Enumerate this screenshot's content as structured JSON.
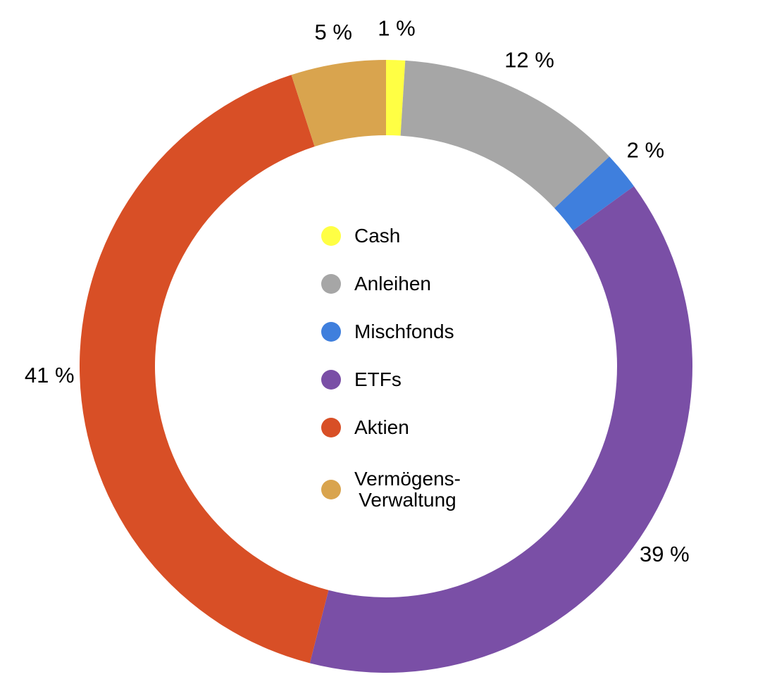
{
  "chart_data": {
    "type": "donut",
    "categories": [
      "Cash",
      "Anleihen",
      "Mischfonds",
      "ETFs",
      "Aktien",
      "Vermögens-\nVerwaltung"
    ],
    "values": [
      1,
      12,
      2,
      39,
      41,
      5
    ],
    "value_labels": [
      "1 %",
      "12 %",
      "2 %",
      "39 %",
      "41 %",
      "5 %"
    ],
    "colors": [
      "#ffff44",
      "#a6a6a6",
      "#3f7fdd",
      "#7a4fa6",
      "#d84f26",
      "#d9a44e"
    ]
  }
}
